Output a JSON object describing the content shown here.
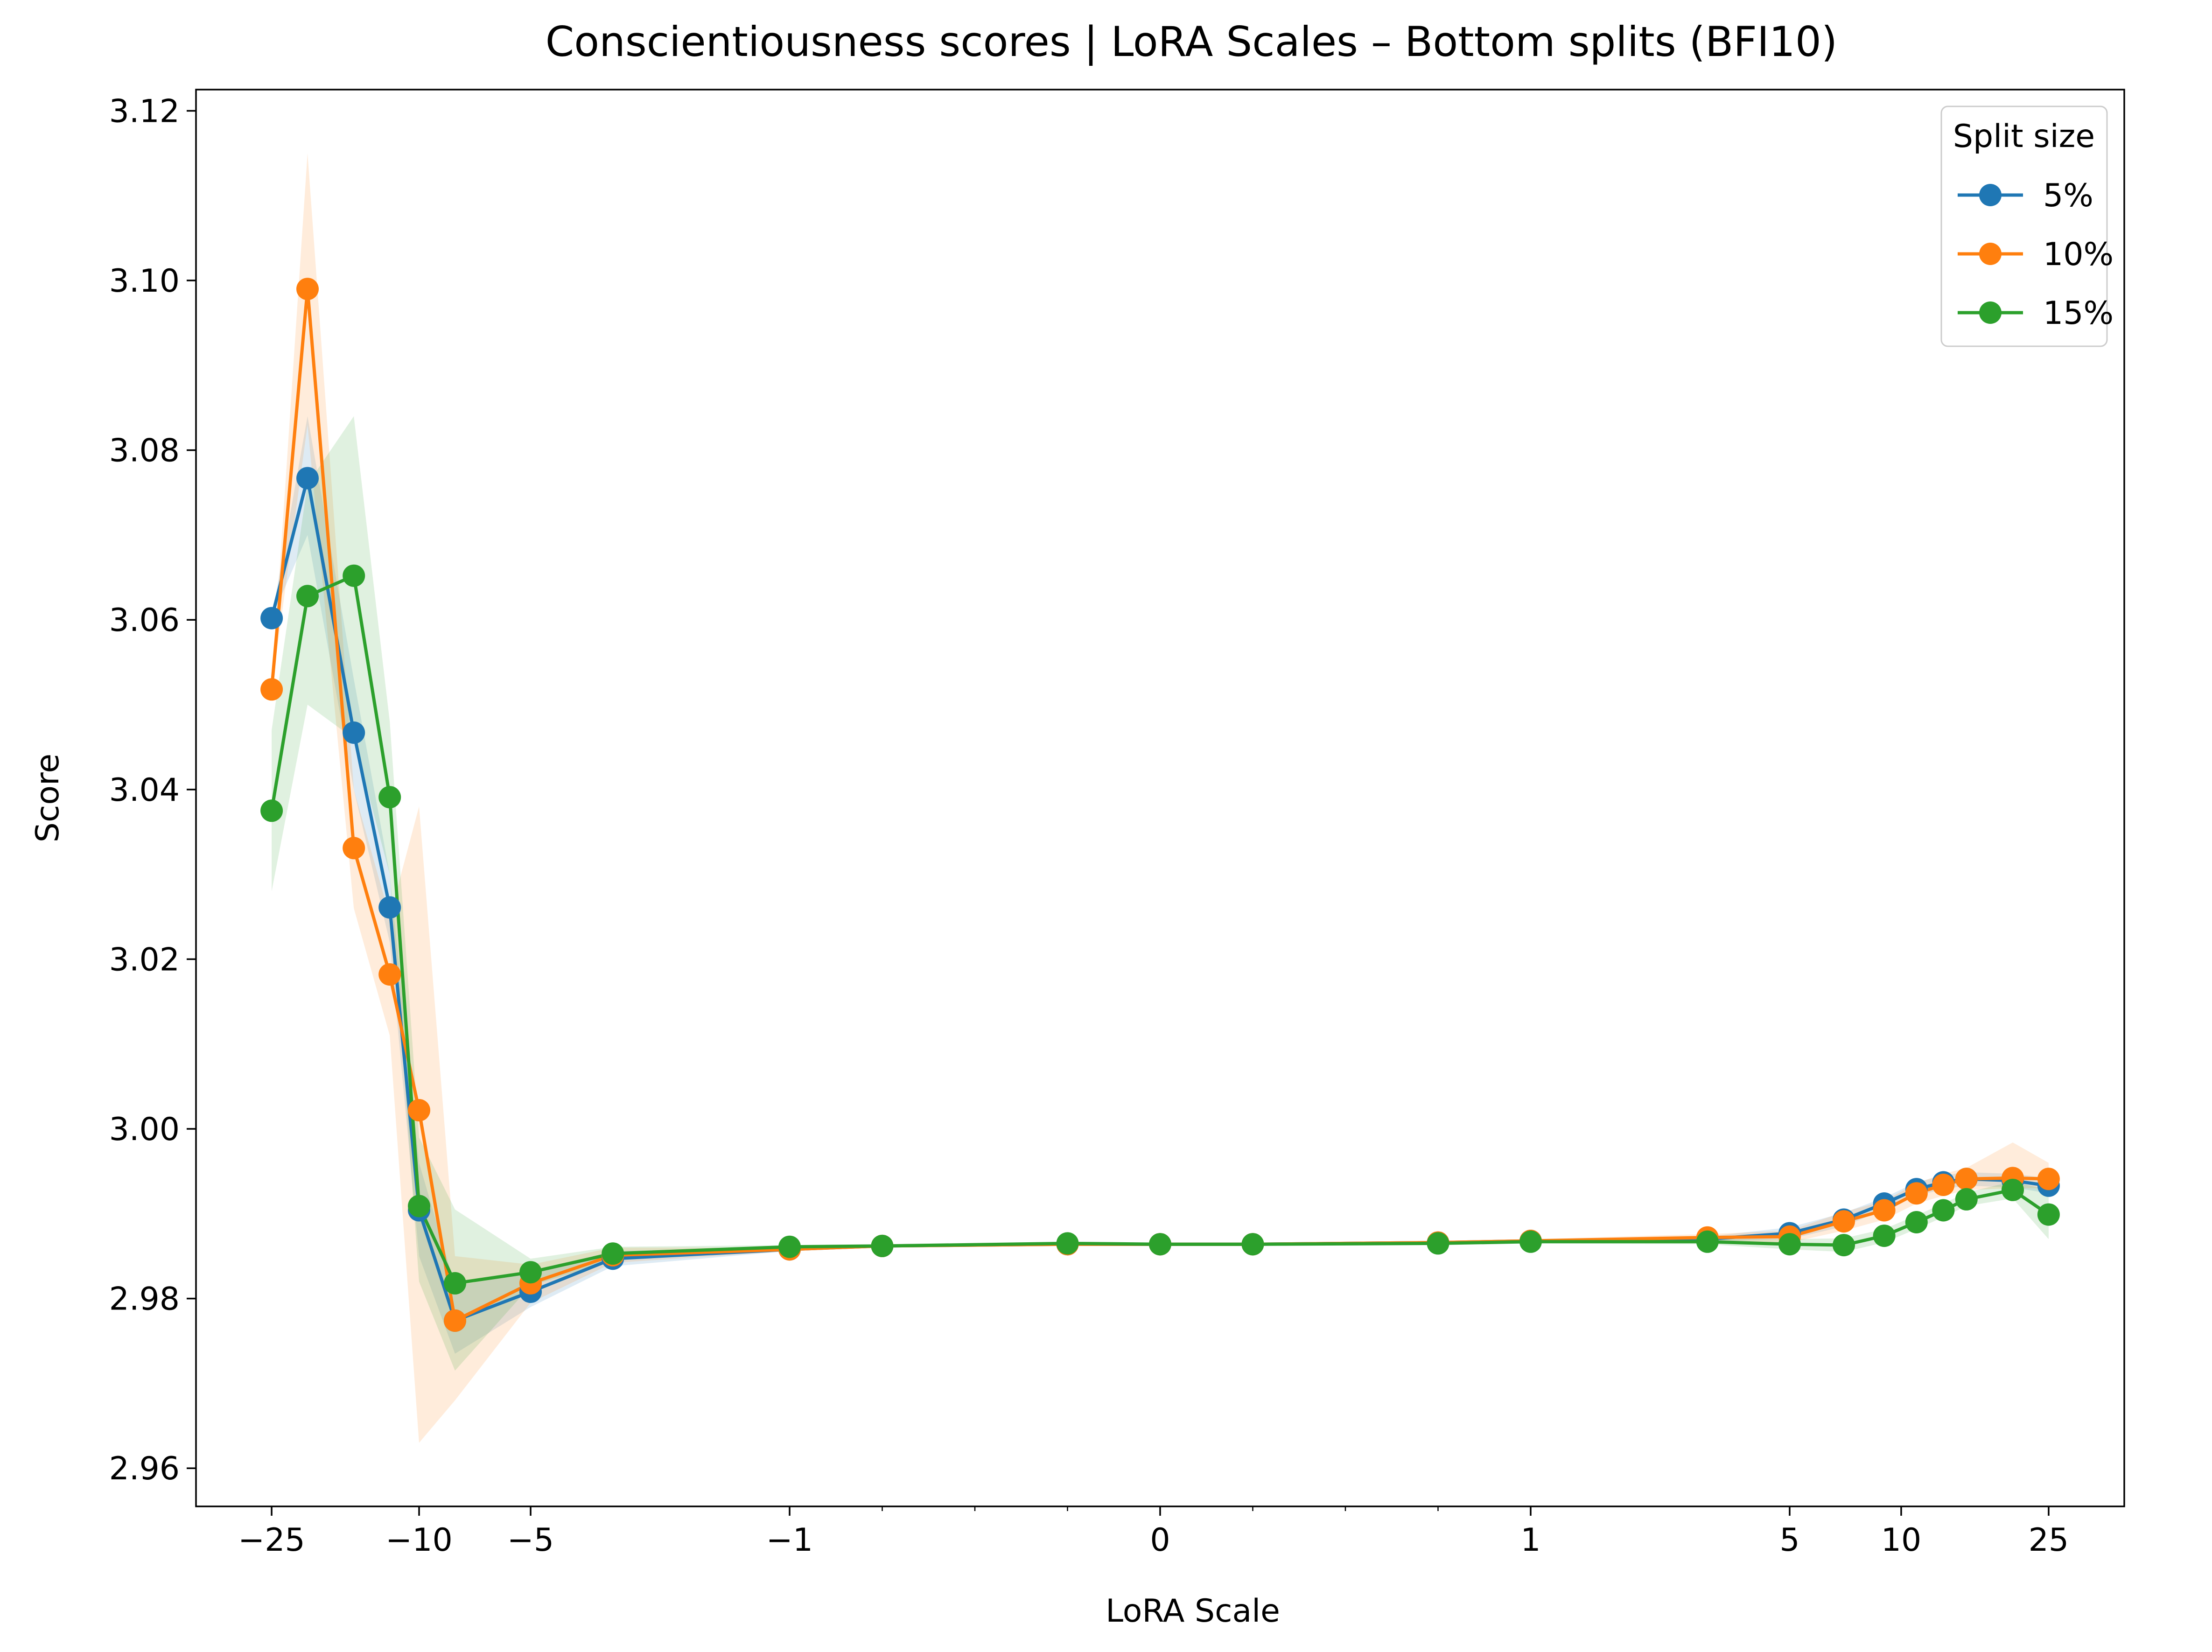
{
  "chart_data": {
    "type": "line",
    "title": "Conscientiousness scores | LoRA Scales – Bottom splits (BFI10)",
    "xlabel": "LoRA Scale",
    "ylabel": "Score",
    "xscale": "symlog",
    "xlim": [
      -40,
      40
    ],
    "ylim": [
      2.9555,
      3.1225
    ],
    "x_ticks": [
      {
        "value": -25,
        "label": "−25"
      },
      {
        "value": -10,
        "label": "−10"
      },
      {
        "value": -5,
        "label": "−5"
      },
      {
        "value": -1,
        "label": "−1"
      },
      {
        "value": 0,
        "label": "0"
      },
      {
        "value": 1,
        "label": "1"
      },
      {
        "value": 5,
        "label": "5"
      },
      {
        "value": 10,
        "label": "10"
      },
      {
        "value": 25,
        "label": "25"
      }
    ],
    "y_ticks": [
      {
        "value": 2.96,
        "label": "2.96"
      },
      {
        "value": 2.98,
        "label": "2.98"
      },
      {
        "value": 3.0,
        "label": "3.00"
      },
      {
        "value": 3.02,
        "label": "3.02"
      },
      {
        "value": 3.04,
        "label": "3.04"
      },
      {
        "value": 3.06,
        "label": "3.06"
      },
      {
        "value": 3.08,
        "label": "3.08"
      },
      {
        "value": 3.1,
        "label": "3.10"
      },
      {
        "value": 3.12,
        "label": "3.12"
      }
    ],
    "grid": false,
    "legend": {
      "title": "Split size",
      "position": "top-right"
    },
    "x": [
      -25,
      -20,
      -15,
      -12,
      -10,
      -8,
      -5,
      -3,
      -1,
      -0.75,
      -0.25,
      0,
      0.25,
      0.75,
      1,
      3,
      5,
      7,
      9,
      11,
      13,
      15,
      20,
      25
    ],
    "series": [
      {
        "name": "5%",
        "color": "#1f77b4",
        "values": [
          3.0602,
          3.0767,
          3.0467,
          3.0261,
          2.9904,
          2.9774,
          2.9808,
          2.9847,
          2.9858,
          2.9862,
          2.9864,
          2.9864,
          2.9864,
          2.9866,
          2.9868,
          2.987,
          2.9877,
          2.9893,
          2.9912,
          2.9929,
          2.9937,
          2.9941,
          2.9939,
          2.9933
        ],
        "band": [
          [
            3.0602,
            3.0602
          ],
          [
            3.07,
            3.084
          ],
          [
            3.04,
            3.053
          ],
          [
            3.022,
            3.03
          ],
          [
            2.985,
            2.996
          ],
          [
            2.9735,
            2.9815
          ],
          [
            2.979,
            2.983
          ],
          [
            2.9838,
            2.9856
          ],
          [
            2.9856,
            2.986
          ],
          [
            2.986,
            2.9864
          ],
          [
            2.9862,
            2.9866
          ],
          [
            2.9862,
            2.9866
          ],
          [
            2.9862,
            2.9866
          ],
          [
            2.9864,
            2.9868
          ],
          [
            2.9866,
            2.987
          ],
          [
            2.9867,
            2.9873
          ],
          [
            2.987,
            2.9884
          ],
          [
            2.9885,
            2.9901
          ],
          [
            2.9905,
            2.9919
          ],
          [
            2.9921,
            2.9937
          ],
          [
            2.9929,
            2.9945
          ],
          [
            2.9933,
            2.9949
          ],
          [
            2.9931,
            2.9947
          ],
          [
            2.9924,
            2.9942
          ]
        ]
      },
      {
        "name": "10%",
        "color": "#ff7f0e",
        "values": [
          3.0518,
          3.099,
          3.0331,
          3.0182,
          3.0022,
          2.9774,
          2.9818,
          2.9851,
          2.9858,
          2.9862,
          2.9864,
          2.9864,
          2.9864,
          2.9866,
          2.9868,
          2.9872,
          2.9873,
          2.9891,
          2.9904,
          2.9924,
          2.9934,
          2.9941,
          2.9942,
          2.9941
        ],
        "band": [
          [
            3.0518,
            3.0518
          ],
          [
            3.083,
            3.115
          ],
          [
            3.026,
            3.04
          ],
          [
            3.011,
            3.025
          ],
          [
            2.963,
            3.038
          ],
          [
            2.968,
            2.985
          ],
          [
            2.9795,
            2.984
          ],
          [
            2.9842,
            2.986
          ],
          [
            2.9856,
            2.986
          ],
          [
            2.986,
            2.9864
          ],
          [
            2.9862,
            2.9866
          ],
          [
            2.9862,
            2.9866
          ],
          [
            2.9862,
            2.9866
          ],
          [
            2.9864,
            2.9868
          ],
          [
            2.9866,
            2.987
          ],
          [
            2.9868,
            2.9876
          ],
          [
            2.9866,
            2.988
          ],
          [
            2.988,
            2.9902
          ],
          [
            2.9893,
            2.9915
          ],
          [
            2.9912,
            2.9936
          ],
          [
            2.9921,
            2.9947
          ],
          [
            2.9928,
            2.9954
          ],
          [
            2.993,
            2.9984
          ],
          [
            2.993,
            2.996
          ]
        ]
      },
      {
        "name": "15%",
        "color": "#2ca02c",
        "values": [
          3.0375,
          3.0628,
          3.0652,
          3.0391,
          2.9909,
          2.9818,
          2.9831,
          2.9853,
          2.9861,
          2.9862,
          2.9865,
          2.9864,
          2.9864,
          2.9865,
          2.9867,
          2.9867,
          2.9864,
          2.9863,
          2.9874,
          2.989,
          2.9904,
          2.9917,
          2.9928,
          2.9899
        ],
        "band": [
          [
            3.028,
            3.047
          ],
          [
            3.05,
            3.076
          ],
          [
            3.046,
            3.084
          ],
          [
            3.03,
            3.048
          ],
          [
            2.982,
            2.999
          ],
          [
            2.9715,
            2.9905
          ],
          [
            2.9815,
            2.9847
          ],
          [
            2.9845,
            2.9861
          ],
          [
            2.9859,
            2.9863
          ],
          [
            2.986,
            2.9864
          ],
          [
            2.9863,
            2.9867
          ],
          [
            2.9862,
            2.9866
          ],
          [
            2.9862,
            2.9866
          ],
          [
            2.9863,
            2.9867
          ],
          [
            2.9865,
            2.9869
          ],
          [
            2.9864,
            2.987
          ],
          [
            2.9858,
            2.987
          ],
          [
            2.9855,
            2.9871
          ],
          [
            2.9866,
            2.9882
          ],
          [
            2.9882,
            2.9898
          ],
          [
            2.9896,
            2.9912
          ],
          [
            2.9909,
            2.9925
          ],
          [
            2.9918,
            2.9938
          ],
          [
            2.987,
            2.9928
          ]
        ]
      }
    ]
  }
}
